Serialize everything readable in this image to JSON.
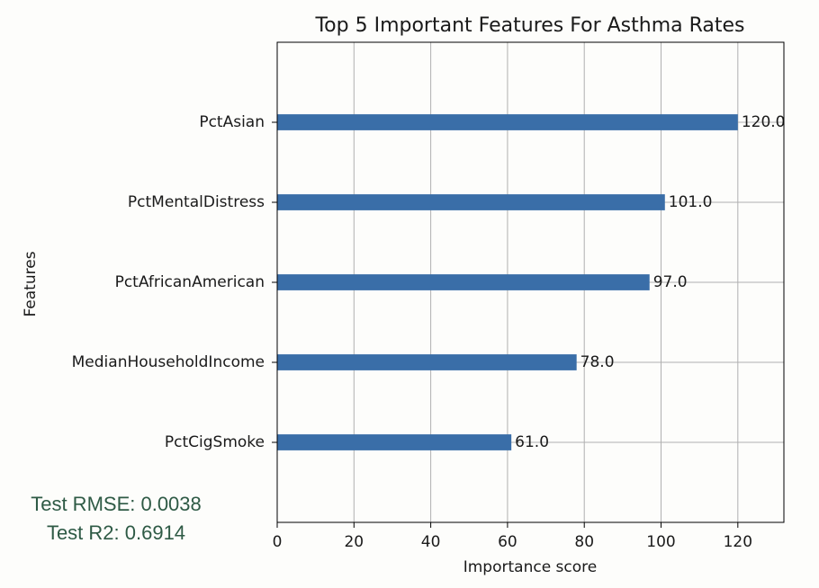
{
  "chart_data": {
    "type": "barh",
    "title": "Top 5 Important Features For Asthma Rates",
    "xlabel": "Importance score",
    "ylabel": "Features",
    "categories": [
      "PctAsian",
      "PctMentalDistress",
      "PctAfricanAmerican",
      "MedianHouseholdIncome",
      "PctCigSmoke"
    ],
    "values": [
      120,
      101,
      97,
      78,
      61
    ],
    "value_labels": [
      "120.0",
      "101.0",
      "97.0",
      "78.0",
      "61.0"
    ],
    "color": "#3a6ea8",
    "xlim": [
      0,
      132
    ],
    "xticks": [
      0,
      20,
      40,
      60,
      80,
      100,
      120
    ],
    "grid": true
  },
  "metrics": [
    "Test RMSE: 0.0038",
    "Test R2: 0.6914"
  ]
}
